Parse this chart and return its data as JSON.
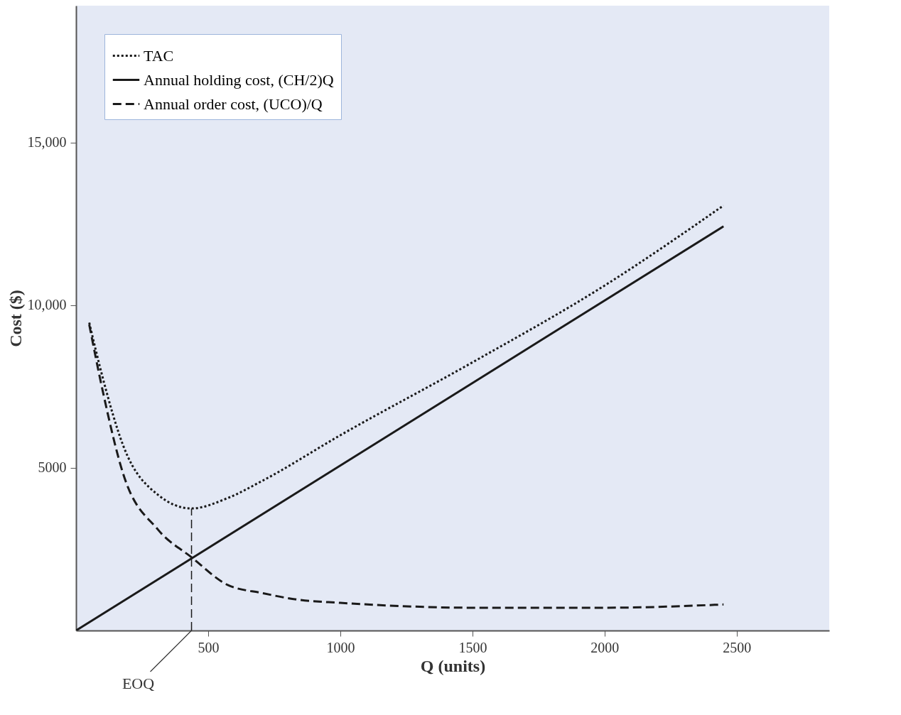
{
  "chart_data": {
    "type": "line",
    "xlabel": "Q (units)",
    "ylabel": "Cost ($)",
    "xlim": [
      0,
      2850
    ],
    "ylim": [
      0,
      19200
    ],
    "xticks": [
      500,
      1000,
      1500,
      2000,
      2500
    ],
    "yticks": [
      5000,
      {
        "value": 10000,
        "label": "10,000"
      },
      {
        "value": 15000,
        "label": "15,000"
      }
    ],
    "grid": false,
    "legend": "top left",
    "series": [
      {
        "name": "TAC",
        "color": "#1a1a1a",
        "line_style": "dotted",
        "x": [
          50,
          100,
          179,
          310,
          437,
          574,
          705,
          1000,
          1500,
          2000,
          2450
        ],
        "values": [
          9460,
          7800,
          5670,
          4170,
          3750,
          4070,
          4600,
          6000,
          8240,
          10600,
          13060
        ]
      },
      {
        "name": "Annual holding cost, (CH/2)Q",
        "color": "#1a1a1a",
        "line_style": "solid",
        "x": [
          0,
          2450
        ],
        "values": [
          0,
          12420
        ]
      },
      {
        "name": "Annual order cost, (UCO)/Q",
        "color": "#1a1a1a",
        "line_style": "dashed",
        "x": [
          50,
          100,
          179,
          310,
          437,
          574,
          705,
          837,
          1000,
          1232,
          1500,
          1758,
          2000,
          2450
        ],
        "values": [
          9400,
          7400,
          4800,
          3100,
          2250,
          1400,
          1150,
          950,
          850,
          750,
          700,
          700,
          700,
          800
        ]
      },
      {
        "color": "#1a1a1a",
        "line_style": "dashed",
        "x": [
          437,
          437
        ],
        "values": [
          0,
          3750
        ]
      }
    ],
    "annotations": [
      {
        "text": "EOQ",
        "x": 437,
        "y": 0
      }
    ]
  }
}
